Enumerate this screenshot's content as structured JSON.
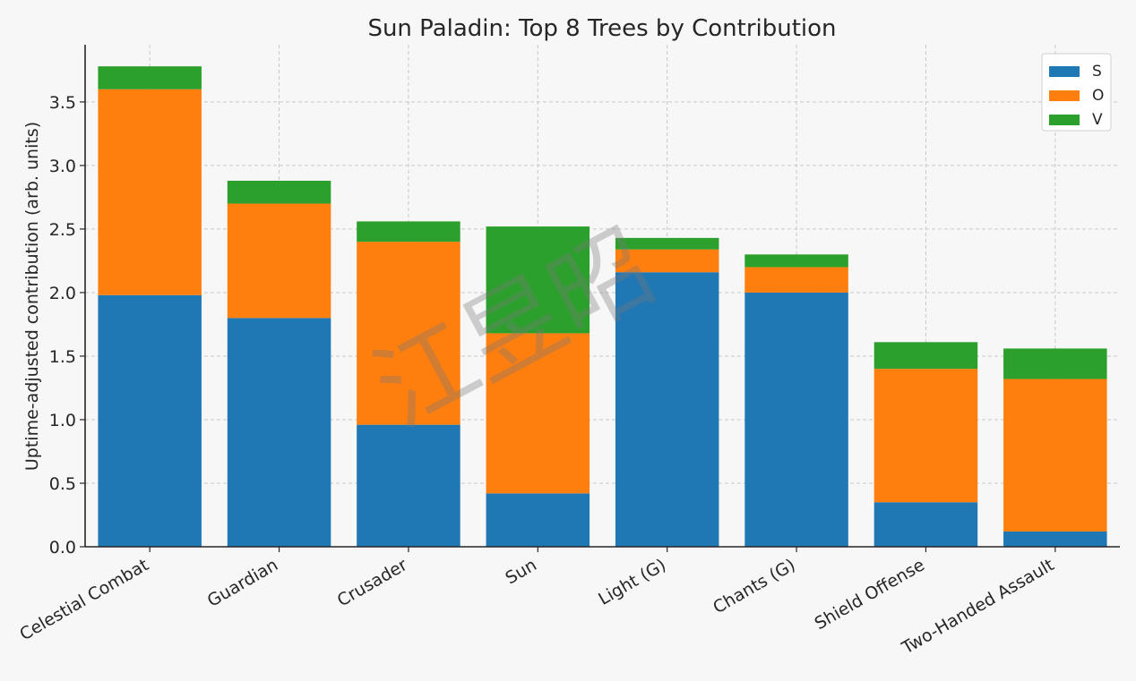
{
  "chart_data": {
    "type": "bar",
    "stacked": true,
    "title": "Sun Paladin: Top 8 Trees by Contribution",
    "xlabel": "",
    "ylabel": "Uptime-adjusted contribution (arb. units)",
    "categories": [
      "Celestial Combat",
      "Guardian",
      "Crusader",
      "Sun",
      "Light (G)",
      "Chants (G)",
      "Shield Offense",
      "Two-Handed Assault"
    ],
    "series": [
      {
        "name": "S",
        "color": "#1f77b4",
        "values": [
          1.98,
          1.8,
          0.96,
          0.42,
          2.16,
          2.0,
          0.35,
          0.12
        ]
      },
      {
        "name": "O",
        "color": "#ff7f0e",
        "values": [
          1.62,
          0.9,
          1.44,
          1.26,
          0.18,
          0.2,
          1.05,
          1.2
        ]
      },
      {
        "name": "V",
        "color": "#2ca02c",
        "values": [
          0.18,
          0.18,
          0.16,
          0.84,
          0.09,
          0.1,
          0.21,
          0.24
        ]
      }
    ],
    "ylim": [
      0,
      3.95
    ],
    "yticks": [
      "0.0",
      "0.5",
      "1.0",
      "1.5",
      "2.0",
      "2.5",
      "3.0",
      "3.5"
    ],
    "grid": true,
    "legend_position": "top-right",
    "watermark": "江昱昭"
  }
}
